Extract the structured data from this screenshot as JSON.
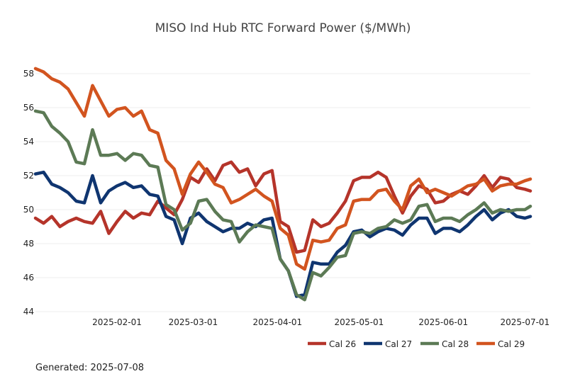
{
  "footer": {
    "generated_text": "Generated: 2025-07-08"
  },
  "chart_data": {
    "type": "line",
    "title": "MISO Ind Hub RTC Forward Power ($/MWh)",
    "xlabel": "",
    "ylabel": "",
    "ylim": [
      44,
      59
    ],
    "xlim": [
      "2025-01-02",
      "2025-07-03"
    ],
    "y_ticks": [
      44,
      46,
      48,
      50,
      52,
      54,
      56,
      58
    ],
    "x_ticks": [
      "2025-02-01",
      "2025-03-01",
      "2025-04-01",
      "2025-05-01",
      "2025-06-01",
      "2025-07-01"
    ],
    "grid": "horizontal",
    "legend_position": "bottom-right",
    "x": [
      "2025-01-02",
      "2025-01-05",
      "2025-01-08",
      "2025-01-11",
      "2025-01-14",
      "2025-01-17",
      "2025-01-20",
      "2025-01-23",
      "2025-01-26",
      "2025-01-29",
      "2025-02-01",
      "2025-02-04",
      "2025-02-07",
      "2025-02-10",
      "2025-02-13",
      "2025-02-16",
      "2025-02-19",
      "2025-02-22",
      "2025-02-25",
      "2025-02-28",
      "2025-03-03",
      "2025-03-06",
      "2025-03-09",
      "2025-03-12",
      "2025-03-15",
      "2025-03-18",
      "2025-03-21",
      "2025-03-24",
      "2025-03-27",
      "2025-03-30",
      "2025-04-02",
      "2025-04-05",
      "2025-04-08",
      "2025-04-11",
      "2025-04-14",
      "2025-04-17",
      "2025-04-20",
      "2025-04-23",
      "2025-04-26",
      "2025-04-29",
      "2025-05-02",
      "2025-05-05",
      "2025-05-08",
      "2025-05-11",
      "2025-05-14",
      "2025-05-17",
      "2025-05-20",
      "2025-05-23",
      "2025-05-26",
      "2025-05-29",
      "2025-06-01",
      "2025-06-04",
      "2025-06-07",
      "2025-06-10",
      "2025-06-13",
      "2025-06-16",
      "2025-06-19",
      "2025-06-22",
      "2025-06-25",
      "2025-06-28",
      "2025-07-01",
      "2025-07-03"
    ],
    "series": [
      {
        "name": "Cal 26",
        "color": "#b5342a",
        "values": [
          49.5,
          49.2,
          49.6,
          49.0,
          49.3,
          49.5,
          49.3,
          49.2,
          49.9,
          48.6,
          49.3,
          49.9,
          49.5,
          49.8,
          49.7,
          50.5,
          50.1,
          49.7,
          50.6,
          51.9,
          51.6,
          52.4,
          51.7,
          52.6,
          52.8,
          52.2,
          52.4,
          51.4,
          52.1,
          52.3,
          49.3,
          49.0,
          47.5,
          47.6,
          49.4,
          49.0,
          49.2,
          49.8,
          50.5,
          51.7,
          51.9,
          51.9,
          52.2,
          51.9,
          50.8,
          49.8,
          50.8,
          51.4,
          51.2,
          50.4,
          50.5,
          50.9,
          51.1,
          50.9,
          51.4,
          52.0,
          51.3,
          51.9,
          51.8,
          51.3,
          51.2,
          51.1
        ]
      },
      {
        "name": "Cal 27",
        "color": "#0f3570",
        "values": [
          52.1,
          52.2,
          51.5,
          51.3,
          51.0,
          50.5,
          50.4,
          52.0,
          50.4,
          51.1,
          51.4,
          51.6,
          51.3,
          51.4,
          50.9,
          50.8,
          49.6,
          49.4,
          48.0,
          49.5,
          49.8,
          49.3,
          49.0,
          48.7,
          48.9,
          48.9,
          49.2,
          49.0,
          49.4,
          49.5,
          47.1,
          46.4,
          44.9,
          45.0,
          46.9,
          46.8,
          46.8,
          47.5,
          47.9,
          48.7,
          48.8,
          48.4,
          48.7,
          48.9,
          48.8,
          48.5,
          49.1,
          49.5,
          49.5,
          48.6,
          48.9,
          48.9,
          48.7,
          49.1,
          49.6,
          50.0,
          49.4,
          49.8,
          50.0,
          49.6,
          49.5,
          49.6
        ]
      },
      {
        "name": "Cal 28",
        "color": "#5c7a55",
        "values": [
          55.8,
          55.7,
          54.9,
          54.5,
          54.0,
          52.8,
          52.7,
          54.7,
          53.2,
          53.2,
          53.3,
          52.9,
          53.3,
          53.2,
          52.6,
          52.5,
          50.3,
          50.0,
          48.8,
          49.2,
          50.5,
          50.6,
          49.9,
          49.4,
          49.3,
          48.1,
          48.7,
          49.1,
          49.0,
          48.9,
          47.1,
          46.4,
          45.0,
          44.7,
          46.3,
          46.1,
          46.6,
          47.2,
          47.3,
          48.6,
          48.7,
          48.6,
          48.9,
          49.0,
          49.4,
          49.2,
          49.4,
          50.2,
          50.3,
          49.3,
          49.5,
          49.5,
          49.3,
          49.7,
          50.0,
          50.4,
          49.8,
          50.0,
          49.9,
          50.0,
          50.0,
          50.2
        ]
      },
      {
        "name": "Cal 29",
        "color": "#d2541f",
        "values": [
          58.3,
          58.1,
          57.7,
          57.5,
          57.1,
          56.3,
          55.5,
          57.3,
          56.4,
          55.5,
          55.9,
          56.0,
          55.5,
          55.8,
          54.7,
          54.5,
          52.9,
          52.4,
          50.9,
          52.1,
          52.8,
          52.2,
          51.5,
          51.3,
          50.4,
          50.6,
          50.9,
          51.2,
          50.8,
          50.5,
          48.9,
          48.5,
          46.8,
          46.5,
          48.2,
          48.1,
          48.2,
          48.9,
          49.1,
          50.5,
          50.6,
          50.6,
          51.1,
          51.2,
          50.5,
          50.0,
          51.4,
          51.8,
          51.0,
          51.2,
          51.0,
          50.8,
          51.1,
          51.4,
          51.5,
          51.8,
          51.1,
          51.4,
          51.5,
          51.5,
          51.7,
          51.8
        ]
      }
    ]
  }
}
